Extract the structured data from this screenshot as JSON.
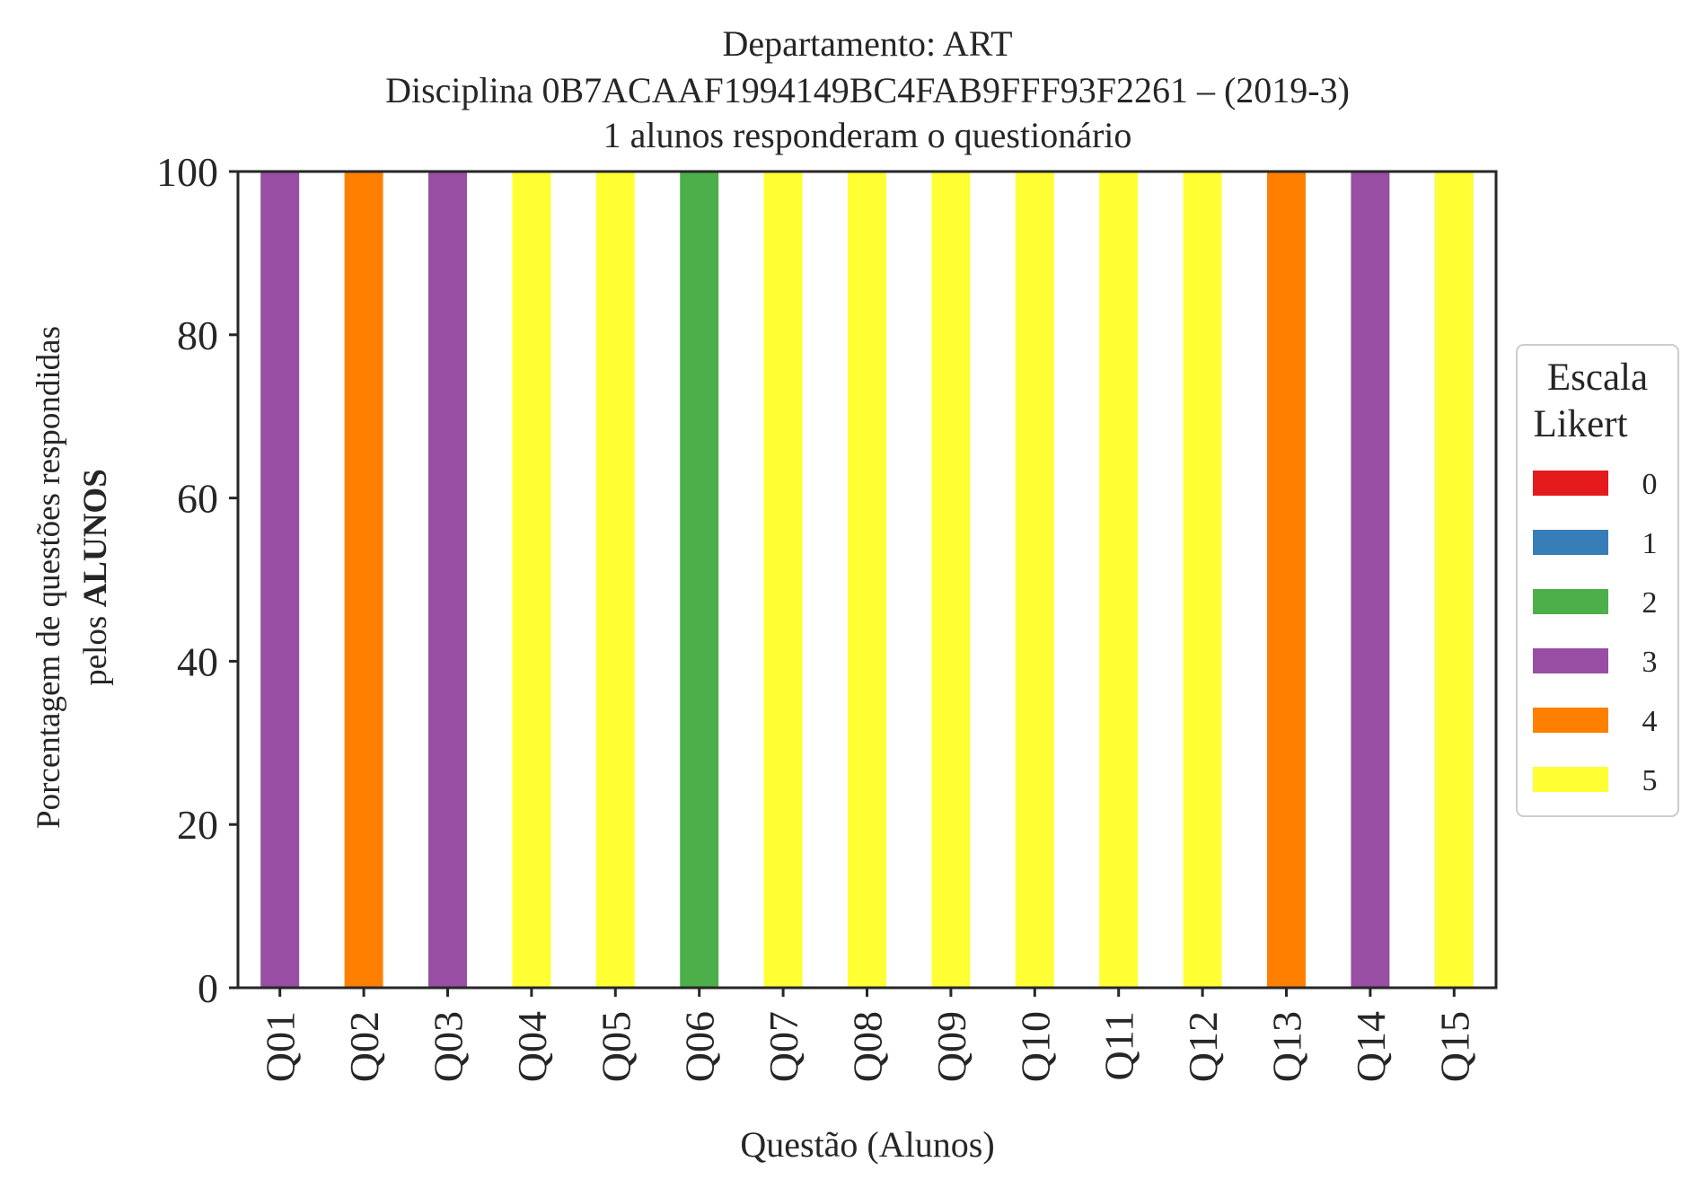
{
  "chart_data": {
    "type": "bar",
    "stacked": true,
    "title": {
      "line1": "Departamento: ART",
      "line2": "Disciplina 0B7ACAAF1994149BC4FAB9FFF93F2261 – (2019-3)",
      "line3": "1 alunos responderam o questionário"
    },
    "xlabel": "Questão (Alunos)",
    "ylabel": {
      "line1": "Porcentagem de questões respondidas",
      "line2_prefix": "pelos ",
      "line2_bold": "ALUNOS"
    },
    "ylim": [
      0,
      100
    ],
    "yticks": [
      0,
      20,
      40,
      60,
      80,
      100
    ],
    "grid": false,
    "categories": [
      "Q01",
      "Q02",
      "Q03",
      "Q04",
      "Q05",
      "Q06",
      "Q07",
      "Q08",
      "Q09",
      "Q10",
      "Q11",
      "Q12",
      "Q13",
      "Q14",
      "Q15"
    ],
    "series": [
      {
        "name": "0",
        "color": "#e41a1c",
        "values": [
          0,
          0,
          0,
          0,
          0,
          0,
          0,
          0,
          0,
          0,
          0,
          0,
          0,
          0,
          0
        ]
      },
      {
        "name": "1",
        "color": "#377eb8",
        "values": [
          0,
          0,
          0,
          0,
          0,
          0,
          0,
          0,
          0,
          0,
          0,
          0,
          0,
          0,
          0
        ]
      },
      {
        "name": "2",
        "color": "#4daf4a",
        "values": [
          0,
          0,
          0,
          0,
          0,
          100,
          0,
          0,
          0,
          0,
          0,
          0,
          0,
          0,
          0
        ]
      },
      {
        "name": "3",
        "color": "#984ea3",
        "values": [
          100,
          0,
          100,
          0,
          0,
          0,
          0,
          0,
          0,
          0,
          0,
          0,
          0,
          100,
          0
        ]
      },
      {
        "name": "4",
        "color": "#ff7f00",
        "values": [
          0,
          100,
          0,
          0,
          0,
          0,
          0,
          0,
          0,
          0,
          0,
          0,
          100,
          0,
          0
        ]
      },
      {
        "name": "5",
        "color": "#ffff33",
        "values": [
          0,
          0,
          0,
          100,
          100,
          0,
          100,
          100,
          100,
          100,
          100,
          100,
          0,
          0,
          100
        ]
      }
    ],
    "legend": {
      "title_line1": "Escala",
      "title_line2": "Likert",
      "placement": "right-center"
    }
  }
}
